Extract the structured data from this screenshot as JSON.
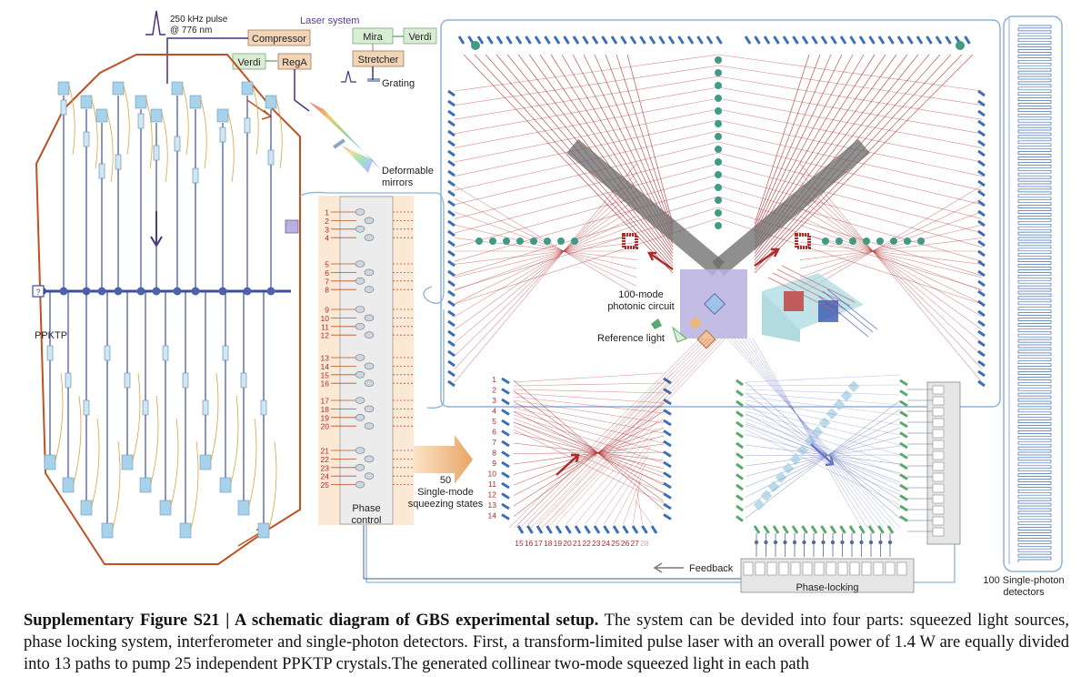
{
  "laser": {
    "pulse_label_1": "250 kHz pulse",
    "pulse_label_2": "@ 776 nm",
    "system_title": "Laser system",
    "compressor": "Compressor",
    "verdi_left": "Verdi",
    "rega": "RegA",
    "mira": "Mira",
    "verdi_right": "Verdi",
    "stretcher": "Stretcher",
    "grating": "Grating",
    "deformable_1": "Deformable",
    "deformable_2": "mirrors"
  },
  "sources": {
    "crystal_label": "PPKTP"
  },
  "phase": {
    "channels": [
      "1",
      "2",
      "3",
      "4",
      "5",
      "6",
      "7",
      "8",
      "9",
      "10",
      "11",
      "12",
      "13",
      "14",
      "15",
      "16",
      "17",
      "18",
      "19",
      "20",
      "21",
      "22",
      "23",
      "24",
      "25"
    ],
    "control_1": "Phase",
    "control_2": "control",
    "squeeze_count": "50",
    "squeeze_line_1": "Single-mode",
    "squeeze_line_2": "squeezing states"
  },
  "interferometer": {
    "circuit_1": "100-mode",
    "circuit_2": "photonic circuit",
    "reference": "Reference light",
    "left_numbers": [
      "1",
      "2",
      "3",
      "4",
      "5",
      "6",
      "7",
      "8",
      "9",
      "10",
      "11",
      "12",
      "13",
      "14"
    ],
    "bottom_numbers": [
      "15",
      "16",
      "17",
      "18",
      "19",
      "20",
      "21",
      "22",
      "23",
      "24",
      "25",
      "26",
      "27",
      "28"
    ],
    "feedback": "Feedback",
    "phase_locking": "Phase-locking"
  },
  "detectors": {
    "label_1": "100 Single-photon",
    "label_2": "detectors"
  },
  "caption": {
    "bold": "Supplementary Figure S21 | A schematic diagram of GBS experimental setup.",
    "text": " The system can be devided into four parts: squeezed light sources, phase locking system, interferometer and single-photon detectors. First, a transform-limited pulse laser with an overall power of 1.4 W are equally divided into 13 paths to pump 25 independent PPKTP crystals.The generated collinear two-mode squeezed light in each path"
  },
  "colors": {
    "laser_purple": "#4b2d83",
    "source_orange": "#c0501f",
    "fiber_blue": "#8fb2d8",
    "red_path": "#b02a2a",
    "detector_blue": "#3d6fb6",
    "teal_node": "#3f9b86",
    "orange_box": "#f2d5b8",
    "green_node": "#5aa86b"
  }
}
